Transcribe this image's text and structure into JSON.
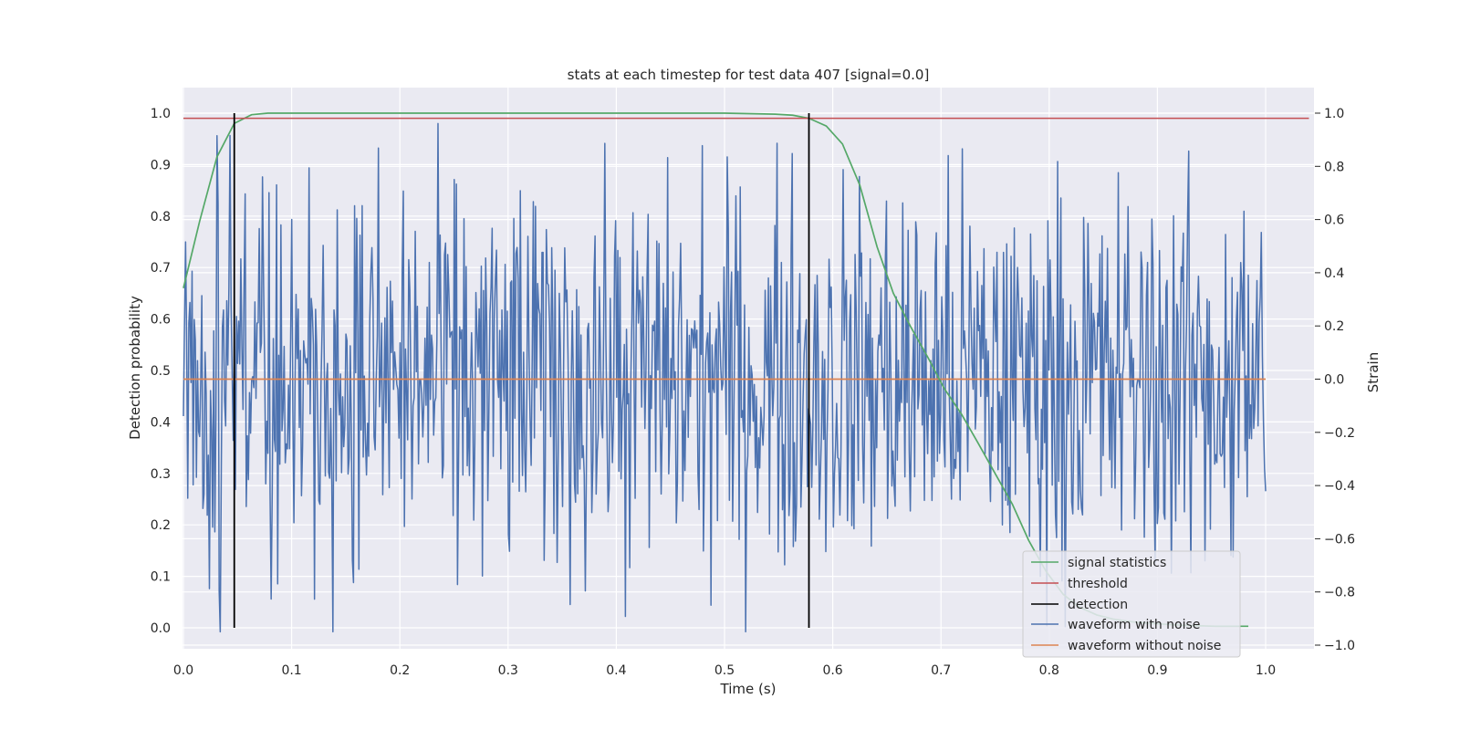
{
  "chart_data": {
    "type": "line",
    "title": "stats at each timestep for test data 407 [signal=0.0]",
    "xlabel": "Time (s)",
    "ylabel_left": "Detection probability",
    "ylabel_right": "Strain",
    "xlim": [
      0.0,
      1.05
    ],
    "ylim_left": [
      -0.045,
      1.045
    ],
    "ylim_right": [
      -1.05,
      1.1
    ],
    "x_ticks": [
      "0.0",
      "0.1",
      "0.2",
      "0.3",
      "0.4",
      "0.5",
      "0.6",
      "0.7",
      "0.8",
      "0.9",
      "1.0"
    ],
    "y_ticks_left": [
      "0.0",
      "0.1",
      "0.2",
      "0.3",
      "0.4",
      "0.5",
      "0.6",
      "0.7",
      "0.8",
      "0.9",
      "1.0"
    ],
    "y_ticks_right": [
      "−1.0",
      "−0.8",
      "−0.6",
      "−0.4",
      "−0.2",
      "0.0",
      "0.2",
      "0.4",
      "0.6",
      "0.8",
      "1.0"
    ],
    "grid": true,
    "legend_position": "lower-right",
    "series": [
      {
        "name": "signal statistics",
        "axis": "left",
        "color": "#55a868",
        "x": [
          0.0,
          0.015,
          0.031,
          0.047,
          0.063,
          0.078,
          0.094,
          0.2,
          0.3,
          0.4,
          0.5,
          0.547,
          0.563,
          0.578,
          0.594,
          0.609,
          0.625,
          0.641,
          0.656,
          0.672,
          0.688,
          0.703,
          0.719,
          0.734,
          0.75,
          0.766,
          0.781,
          0.797,
          0.813,
          0.828,
          0.844,
          0.859,
          0.875,
          0.891,
          0.906,
          0.922,
          0.938,
          0.953,
          0.969,
          0.984
        ],
        "y": [
          0.66,
          0.79,
          0.915,
          0.98,
          0.997,
          1.0,
          1.0,
          1.0,
          1.0,
          1.0,
          1.0,
          0.998,
          0.996,
          0.99,
          0.975,
          0.94,
          0.86,
          0.74,
          0.65,
          0.585,
          0.525,
          0.465,
          0.415,
          0.36,
          0.3,
          0.24,
          0.17,
          0.11,
          0.065,
          0.04,
          0.025,
          0.017,
          0.012,
          0.009,
          0.007,
          0.005,
          0.004,
          0.003,
          0.003,
          0.003
        ]
      },
      {
        "name": "threshold",
        "axis": "left",
        "color": "#c44e52",
        "x": [
          0.0,
          1.04
        ],
        "y": [
          0.99,
          0.99
        ]
      },
      {
        "name": "detection",
        "axis": "left",
        "color": "#000000",
        "x": [
          0.047,
          0.578
        ],
        "y_range": [
          0.0,
          1.0
        ]
      },
      {
        "name": "waveform with noise",
        "axis": "right",
        "color": "#4c72b0",
        "x_range": [
          0.0,
          1.0
        ],
        "n_points": 1000,
        "y_range_approx": [
          -0.95,
          1.0
        ]
      },
      {
        "name": "waveform without noise",
        "axis": "right",
        "color": "#dd8452",
        "x": [
          0.0,
          1.0
        ],
        "y": [
          0.0,
          0.0
        ]
      }
    ]
  }
}
